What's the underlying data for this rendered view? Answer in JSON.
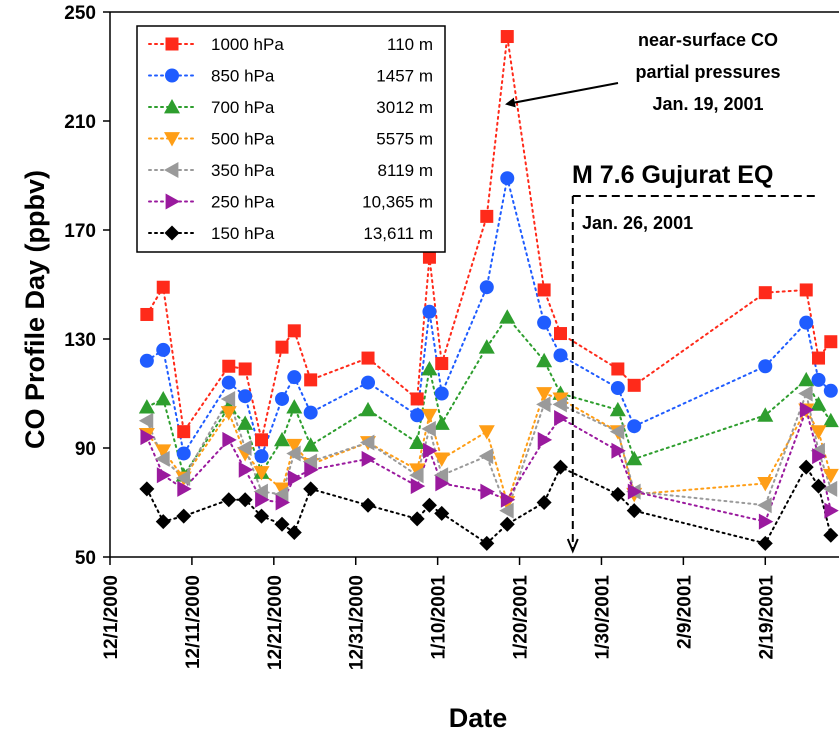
{
  "chart_data": {
    "type": "scatter",
    "xlabel": "Date",
    "ylabel": "CO Profile Day (ppbv)",
    "ylim": [
      50,
      250
    ],
    "yticks": [
      "250",
      "210",
      "170",
      "130",
      "90",
      "50"
    ],
    "x_tick_labels": [
      "12/1/2000",
      "12/11/2000",
      "12/21/2000",
      "12/31/2000",
      "1/10/2001",
      "1/20/2001",
      "1/30/2001",
      "2/9/2001",
      "2/19/2001"
    ],
    "x_tick_days": [
      0,
      10,
      20,
      30,
      40,
      50,
      60,
      70,
      80
    ],
    "x_domain_days": [
      0,
      89
    ],
    "x": [
      "2000-12-05",
      "2000-12-07",
      "2000-12-09",
      "2000-12-14",
      "2000-12-16",
      "2000-12-18",
      "2000-12-20",
      "2000-12-22",
      "2000-12-24",
      "2000-12-30",
      "2001-01-03",
      "2001-01-05",
      "2001-01-06",
      "2001-01-10",
      "2001-01-12",
      "2001-01-14",
      "2001-01-17",
      "2001-01-22",
      "2001-01-25",
      "2001-01-28",
      "2001-01-30",
      "2001-02-19",
      "2001-02-24",
      "2001-02-26",
      "2001-02-28"
    ],
    "x_days": [
      4.5,
      6.5,
      9,
      14.5,
      16.5,
      18.5,
      21,
      22.5,
      25,
      31.5,
      37.5,
      39.5,
      41,
      46.5,
      49,
      54,
      56,
      61.5,
      64,
      81,
      85,
      86.5,
      88,
      90,
      92
    ],
    "legend_placement": "top-left",
    "series": [
      {
        "name": "1000 hPa",
        "altitude": "110 m",
        "color": "#ff2a1a",
        "marker": "square",
        "points": [
          [
            4.5,
            139
          ],
          [
            6.5,
            149
          ],
          [
            9,
            96
          ],
          [
            14.5,
            120
          ],
          [
            16.5,
            119
          ],
          [
            18.5,
            93
          ],
          [
            21,
            127
          ],
          [
            22.5,
            133
          ],
          [
            24.5,
            115
          ],
          [
            31.5,
            123
          ],
          [
            37.5,
            108
          ],
          [
            39,
            160
          ],
          [
            40.5,
            121
          ],
          [
            46,
            175
          ],
          [
            48.5,
            241
          ],
          [
            53,
            148
          ],
          [
            55,
            132
          ],
          [
            62,
            119
          ],
          [
            64,
            113
          ],
          [
            80,
            147
          ],
          [
            85,
            148
          ],
          [
            86.5,
            123
          ],
          [
            88,
            129
          ]
        ]
      },
      {
        "name": "850 hPa",
        "altitude": "1457 m",
        "color": "#1f5cff",
        "marker": "circle",
        "points": [
          [
            4.5,
            122
          ],
          [
            6.5,
            126
          ],
          [
            9,
            88
          ],
          [
            14.5,
            114
          ],
          [
            16.5,
            109
          ],
          [
            18.5,
            87
          ],
          [
            21,
            108
          ],
          [
            22.5,
            116
          ],
          [
            24.5,
            103
          ],
          [
            31.5,
            114
          ],
          [
            37.5,
            102
          ],
          [
            39,
            140
          ],
          [
            40.5,
            110
          ],
          [
            46,
            149
          ],
          [
            48.5,
            189
          ],
          [
            53,
            136
          ],
          [
            55,
            124
          ],
          [
            62,
            112
          ],
          [
            64,
            98
          ],
          [
            80,
            120
          ],
          [
            85,
            136
          ],
          [
            86.5,
            115
          ],
          [
            88,
            111
          ]
        ]
      },
      {
        "name": "700 hPa",
        "altitude": "3012 m",
        "color": "#2e9e2e",
        "marker": "triangle-up",
        "points": [
          [
            4.5,
            105
          ],
          [
            6.5,
            108
          ],
          [
            9,
            80
          ],
          [
            14.5,
            105
          ],
          [
            16.5,
            99
          ],
          [
            18.5,
            81
          ],
          [
            21,
            93
          ],
          [
            22.5,
            105
          ],
          [
            24.5,
            91
          ],
          [
            31.5,
            104
          ],
          [
            37.5,
            92
          ],
          [
            39,
            119
          ],
          [
            40.5,
            99
          ],
          [
            46,
            127
          ],
          [
            48.5,
            138
          ],
          [
            53,
            122
          ],
          [
            55,
            110
          ],
          [
            62,
            104
          ],
          [
            64,
            86
          ],
          [
            80,
            102
          ],
          [
            85,
            115
          ],
          [
            86.5,
            106
          ],
          [
            88,
            100
          ]
        ]
      },
      {
        "name": "500 hPa",
        "altitude": "5575 m",
        "color": "#ff9e16",
        "marker": "triangle-down",
        "points": [
          [
            4.5,
            95
          ],
          [
            6.5,
            89
          ],
          [
            9,
            79
          ],
          [
            14.5,
            103
          ],
          [
            16.5,
            88
          ],
          [
            18.5,
            81
          ],
          [
            21,
            75
          ],
          [
            22.5,
            91
          ],
          [
            24.5,
            84
          ],
          [
            31.5,
            92
          ],
          [
            37.5,
            82
          ],
          [
            39,
            102
          ],
          [
            40.5,
            86
          ],
          [
            46,
            96
          ],
          [
            48.5,
            70
          ],
          [
            53,
            110
          ],
          [
            55,
            108
          ],
          [
            62,
            96
          ],
          [
            64,
            73
          ],
          [
            80,
            77
          ],
          [
            85,
            104
          ],
          [
            86.5,
            96
          ],
          [
            88,
            80
          ]
        ]
      },
      {
        "name": "350 hPa",
        "altitude": "8119 m",
        "color": "#9a9a9a",
        "marker": "triangle-left",
        "points": [
          [
            4.5,
            100
          ],
          [
            6.5,
            86
          ],
          [
            9,
            79
          ],
          [
            14.5,
            108
          ],
          [
            16.5,
            90
          ],
          [
            18.5,
            74
          ],
          [
            21,
            73
          ],
          [
            22.5,
            88
          ],
          [
            24.5,
            85
          ],
          [
            31.5,
            92
          ],
          [
            37.5,
            80
          ],
          [
            39,
            97
          ],
          [
            40.5,
            80
          ],
          [
            46,
            87
          ],
          [
            48.5,
            67
          ],
          [
            53,
            106
          ],
          [
            55,
            106
          ],
          [
            62,
            96
          ],
          [
            64,
            74
          ],
          [
            80,
            69
          ],
          [
            85,
            110
          ],
          [
            86.5,
            89
          ],
          [
            88,
            75
          ]
        ]
      },
      {
        "name": "250 hPa",
        "altitude": "10,365 m",
        "color": "#9a1a9e",
        "marker": "triangle-right",
        "points": [
          [
            4.5,
            94
          ],
          [
            6.5,
            80
          ],
          [
            9,
            75
          ],
          [
            14.5,
            93
          ],
          [
            16.5,
            82
          ],
          [
            18.5,
            71
          ],
          [
            21,
            70
          ],
          [
            22.5,
            79
          ],
          [
            24.5,
            82
          ],
          [
            31.5,
            86
          ],
          [
            37.5,
            76
          ],
          [
            39,
            89
          ],
          [
            40.5,
            77
          ],
          [
            46,
            74
          ],
          [
            48.5,
            71
          ],
          [
            53,
            93
          ],
          [
            55,
            101
          ],
          [
            62,
            89
          ],
          [
            64,
            74
          ],
          [
            80,
            63
          ],
          [
            85,
            104
          ],
          [
            86.5,
            87
          ],
          [
            88,
            67
          ]
        ]
      },
      {
        "name": "150 hPa",
        "altitude": "13,611 m",
        "color": "#000000",
        "marker": "diamond",
        "points": [
          [
            4.5,
            75
          ],
          [
            6.5,
            63
          ],
          [
            9,
            65
          ],
          [
            14.5,
            71
          ],
          [
            16.5,
            71
          ],
          [
            18.5,
            65
          ],
          [
            21,
            62
          ],
          [
            22.5,
            59
          ],
          [
            24.5,
            75
          ],
          [
            31.5,
            69
          ],
          [
            37.5,
            64
          ],
          [
            39,
            69
          ],
          [
            40.5,
            66
          ],
          [
            46,
            55
          ],
          [
            48.5,
            62
          ],
          [
            53,
            70
          ],
          [
            55,
            83
          ],
          [
            62,
            73
          ],
          [
            64,
            67
          ],
          [
            80,
            55
          ],
          [
            85,
            83
          ],
          [
            86.5,
            76
          ],
          [
            88,
            58
          ]
        ]
      }
    ],
    "annotations": [
      {
        "id": "near-surface",
        "lines": [
          "near-surface CO",
          "partial pressures",
          "Jan. 19, 2001"
        ]
      },
      {
        "id": "earthquake",
        "title": "M 7.6 Gujurat EQ",
        "date": "Jan. 26, 2001",
        "x_day": 56.5
      }
    ]
  }
}
